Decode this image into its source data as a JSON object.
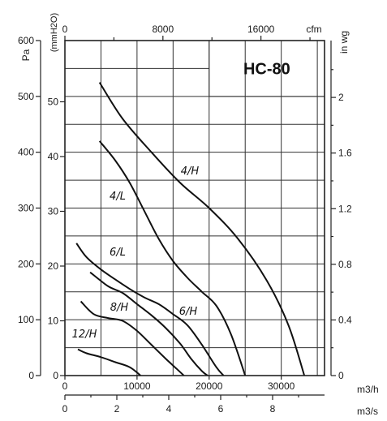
{
  "chart_data": {
    "type": "line",
    "title": "HC-80",
    "x_axes": {
      "m3h": {
        "label": "m3/h",
        "ticks": [
          0,
          10000,
          20000,
          30000
        ]
      },
      "m3s": {
        "label": "m3/s",
        "ticks": [
          0,
          2,
          4,
          6,
          8
        ]
      },
      "cfm": {
        "label": "cfm",
        "ticks": [
          0,
          8000,
          16000
        ]
      }
    },
    "y_axes": {
      "pa": {
        "label": "Pa",
        "ticks": [
          0,
          100,
          200,
          300,
          400,
          500,
          600
        ]
      },
      "mmh2o": {
        "label": "(mmH2O)",
        "ticks": [
          0,
          10,
          20,
          30,
          40,
          50
        ]
      },
      "inwg": {
        "label": "in wg",
        "ticks": [
          "0",
          "0.4",
          "0.8",
          "1.2",
          "1.6",
          "2"
        ]
      }
    },
    "xlim": [
      0,
      36000
    ],
    "ylim": [
      0,
      600
    ],
    "grid": true,
    "series": [
      {
        "name": "4/H",
        "x": [
          4800,
          8000,
          12000,
          16000,
          20000,
          24000,
          28000,
          31000,
          33200
        ],
        "y": [
          525,
          460,
          400,
          345,
          300,
          245,
          170,
          90,
          0
        ]
      },
      {
        "name": "4/L",
        "x": [
          4800,
          7000,
          9000,
          11000,
          13000,
          15000,
          17000,
          19000,
          21000,
          23000,
          25000
        ],
        "y": [
          420,
          385,
          345,
          295,
          245,
          205,
          175,
          150,
          125,
          75,
          0
        ]
      },
      {
        "name": "6/L",
        "x": [
          1600,
          3000,
          5000,
          7000,
          9000,
          11000,
          13000,
          15000,
          17000,
          19000,
          21000,
          22000
        ],
        "y": [
          237,
          212,
          190,
          172,
          155,
          140,
          128,
          110,
          90,
          55,
          15,
          0
        ]
      },
      {
        "name": "6/H",
        "x": [
          3500,
          6000,
          8000,
          10000,
          12000,
          14000,
          16000,
          17500,
          19000,
          19800
        ],
        "y": [
          185,
          160,
          148,
          128,
          108,
          85,
          57,
          30,
          8,
          0
        ]
      },
      {
        "name": "8/H",
        "x": [
          2200,
          4000,
          6000,
          8000,
          10000,
          12000,
          14000,
          15500,
          16500
        ],
        "y": [
          133,
          110,
          103,
          98,
          80,
          55,
          30,
          12,
          0
        ]
      },
      {
        "name": "12/H",
        "x": [
          1800,
          3000,
          5000,
          7000,
          9000,
          10500
        ],
        "y": [
          47,
          40,
          33,
          24,
          15,
          0
        ]
      }
    ]
  },
  "labels": {
    "m3h_unit": "m3/h",
    "m3s_unit": "m3/s",
    "cfm_unit": "cfm",
    "pa_unit": "Pa",
    "mmh2o_unit": "(mmH2O)",
    "inwg_unit": "in wg"
  }
}
